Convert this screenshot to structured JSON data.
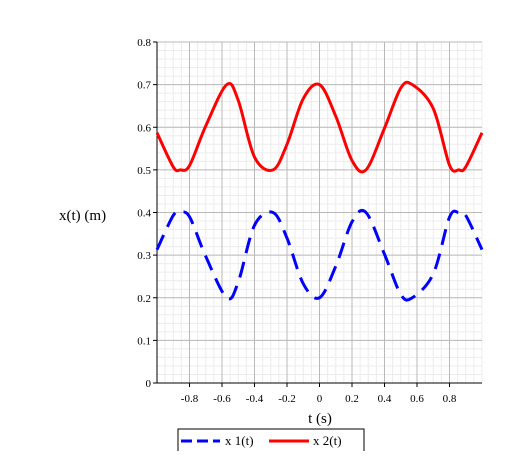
{
  "chart_data": {
    "type": "line",
    "xlabel": "t (s)",
    "ylabel": "x(t) (m)",
    "xlim": [
      -1,
      1
    ],
    "ylim": [
      0,
      0.8
    ],
    "x_ticks": [
      -0.8,
      -0.6,
      -0.4,
      -0.2,
      0,
      0.2,
      0.4,
      0.6,
      0.8
    ],
    "x_tick_labels": [
      "-0.8",
      "-0.6",
      "-0.4",
      "-0.2",
      "0",
      "0.2",
      "0.4",
      "0.6",
      "0.8"
    ],
    "y_ticks": [
      0,
      0.1,
      0.2,
      0.3,
      0.4,
      0.5,
      0.6,
      0.7,
      0.8
    ],
    "y_tick_labels": [
      "0",
      "0.1",
      "0.2",
      "0.3",
      "0.4",
      "0.5",
      "0.6",
      "0.7",
      "0.8"
    ],
    "grid": true,
    "legend_position": "bottom-center",
    "series": [
      {
        "name": "x 1(t)",
        "color": "#0000ff",
        "style": "dashed",
        "x": [
          -1,
          -0.9,
          -0.857,
          -0.8,
          -0.7,
          -0.571,
          -0.5,
          -0.4,
          -0.286,
          -0.2,
          -0.1,
          0,
          0.1,
          0.2,
          0.286,
          0.4,
          0.5,
          0.571,
          0.7,
          0.8,
          0.857,
          0.9,
          1
        ],
        "y": [
          0.313,
          0.393,
          0.4,
          0.39,
          0.297,
          0.2,
          0.237,
          0.37,
          0.4,
          0.34,
          0.233,
          0.2,
          0.274,
          0.378,
          0.4,
          0.302,
          0.208,
          0.2,
          0.256,
          0.389,
          0.4,
          0.393,
          0.313
        ]
      },
      {
        "name": "x 2(t)",
        "color": "#ff0000",
        "style": "solid",
        "x": [
          -1,
          -0.9,
          -0.857,
          -0.8,
          -0.7,
          -0.571,
          -0.5,
          -0.4,
          -0.286,
          -0.2,
          -0.1,
          0,
          0.1,
          0.2,
          0.286,
          0.4,
          0.5,
          0.571,
          0.7,
          0.8,
          0.857,
          0.9,
          1
        ],
        "y": [
          0.587,
          0.507,
          0.5,
          0.51,
          0.603,
          0.7,
          0.663,
          0.53,
          0.5,
          0.56,
          0.667,
          0.7,
          0.626,
          0.522,
          0.5,
          0.598,
          0.692,
          0.7,
          0.644,
          0.511,
          0.5,
          0.507,
          0.587
        ]
      }
    ]
  }
}
